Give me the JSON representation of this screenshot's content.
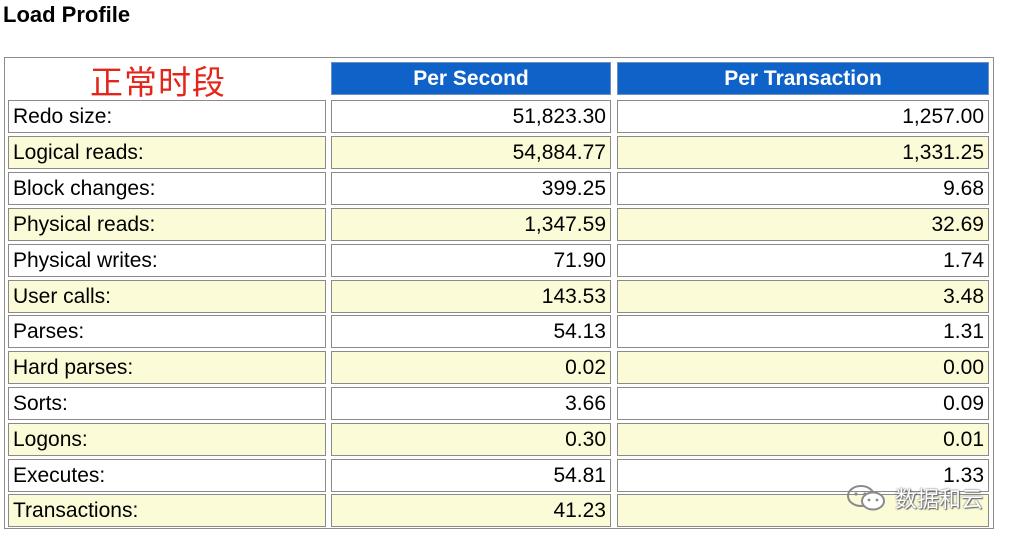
{
  "title": "Load Profile",
  "corner_label": "正常时段",
  "columns": {
    "per_second": "Per Second",
    "per_transaction": "Per Transaction"
  },
  "rows": [
    {
      "name": "Redo size:",
      "per_second": "51,823.30",
      "per_transaction": "1,257.00"
    },
    {
      "name": "Logical reads:",
      "per_second": "54,884.77",
      "per_transaction": "1,331.25"
    },
    {
      "name": "Block changes:",
      "per_second": "399.25",
      "per_transaction": "9.68"
    },
    {
      "name": "Physical reads:",
      "per_second": "1,347.59",
      "per_transaction": "32.69"
    },
    {
      "name": "Physical writes:",
      "per_second": "71.90",
      "per_transaction": "1.74"
    },
    {
      "name": "User calls:",
      "per_second": "143.53",
      "per_transaction": "3.48"
    },
    {
      "name": "Parses:",
      "per_second": "54.13",
      "per_transaction": "1.31"
    },
    {
      "name": "Hard parses:",
      "per_second": "0.02",
      "per_transaction": "0.00"
    },
    {
      "name": "Sorts:",
      "per_second": "3.66",
      "per_transaction": "0.09"
    },
    {
      "name": "Logons:",
      "per_second": "0.30",
      "per_transaction": "0.01"
    },
    {
      "name": "Executes:",
      "per_second": "54.81",
      "per_transaction": "1.33"
    },
    {
      "name": "Transactions:",
      "per_second": "41.23",
      "per_transaction": ""
    }
  ],
  "watermark": "数据和云",
  "colors": {
    "header_bg": "#0f62c8",
    "alt_row_bg": "#fbfbd8",
    "corner_label": "#e4261a"
  }
}
